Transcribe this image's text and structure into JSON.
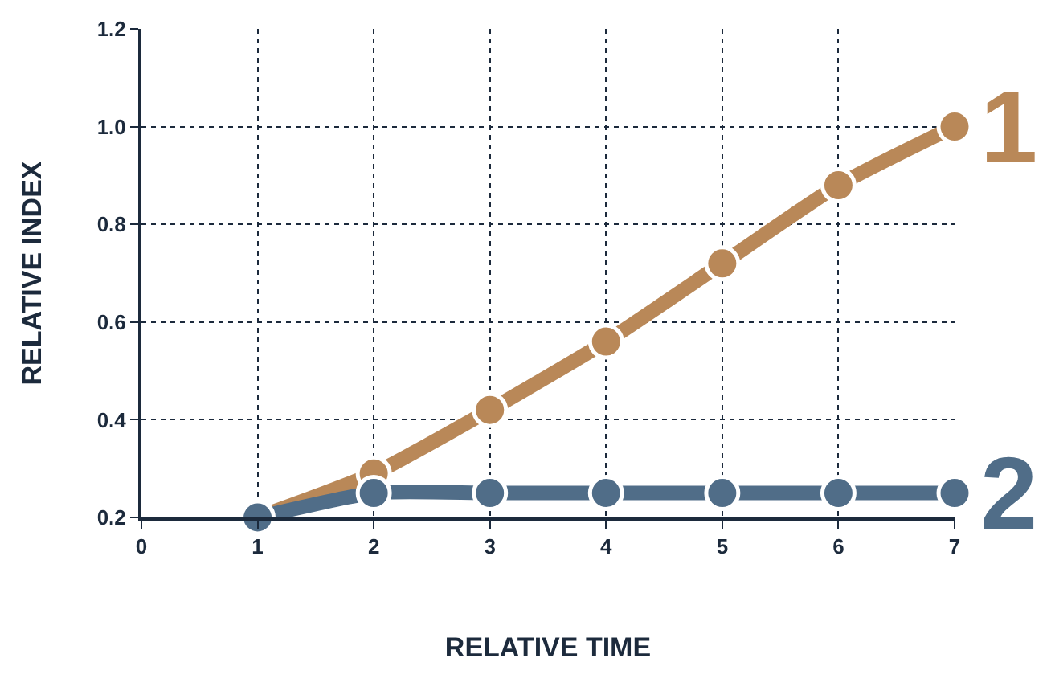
{
  "chart_data": {
    "type": "line",
    "xlabel": "RELATIVE TIME",
    "ylabel": "RELATIVE INDEX",
    "x": [
      1,
      2,
      3,
      4,
      5,
      6,
      7
    ],
    "series": [
      {
        "name": "1",
        "color": "#b98858",
        "values": [
          0.2,
          0.29,
          0.42,
          0.56,
          0.72,
          0.88,
          1.0
        ]
      },
      {
        "name": "2",
        "color": "#506d88",
        "values": [
          0.2,
          0.25,
          0.25,
          0.25,
          0.25,
          0.25,
          0.25
        ]
      }
    ],
    "xlim": [
      0,
      7
    ],
    "xticks": [
      0,
      1,
      2,
      3,
      4,
      5,
      6,
      7
    ],
    "ylim": [
      0.2,
      1.2
    ],
    "yticks": [
      0.2,
      0.4,
      0.6,
      0.8,
      {
        "value": 1,
        "label": "1.0"
      },
      1.2
    ],
    "grid": true,
    "marker": "circle",
    "line_style": "solid",
    "legend": false
  }
}
